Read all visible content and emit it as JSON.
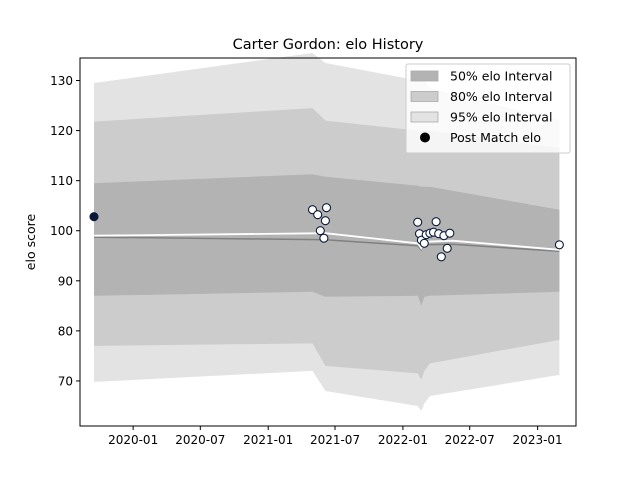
{
  "chart_data": {
    "type": "line",
    "title": "Carter Gordon: elo History",
    "xlabel": "",
    "ylabel": "elo score",
    "x_ticks": [
      "2020-01",
      "2020-07",
      "2021-01",
      "2021-07",
      "2022-01",
      "2022-07",
      "2023-01"
    ],
    "y_ticks": [
      70,
      80,
      90,
      100,
      110,
      120,
      130
    ],
    "xlim": [
      "2019-08-10",
      "2023-04-15"
    ],
    "ylim": [
      61,
      134.5
    ],
    "colors": {
      "band50": "#b3b3b3",
      "band80": "#cccccc",
      "band95": "#e3e3e3",
      "mean_line": "#ffffff",
      "median_line": "#808080",
      "marker_edge": "#0b1a3a",
      "marker_face": "#ffffff",
      "marker_first": "#0b1a3a"
    },
    "legend": {
      "position": "top-right",
      "entries": [
        "50% elo Interval",
        "80% elo Interval",
        "95% elo Interval",
        "Post Match elo"
      ]
    },
    "bands": {
      "x": [
        "2019-09-17",
        "2021-05-01",
        "2021-06-05",
        "2022-02-10",
        "2022-02-20",
        "2022-02-28",
        "2022-03-15",
        "2023-03-01"
      ],
      "p95_upper": [
        129.5,
        135.5,
        133.5,
        130.0,
        130.0,
        130.0,
        128.5,
        122.0
      ],
      "p95_lower": [
        69.8,
        72.0,
        68.0,
        65.0,
        64.0,
        65.5,
        67.0,
        71.2
      ],
      "p80_upper": [
        121.8,
        124.5,
        122.0,
        120.0,
        119.8,
        120.0,
        120.0,
        116.5
      ],
      "p80_lower": [
        77.0,
        77.5,
        73.0,
        71.5,
        70.2,
        72.0,
        73.5,
        78.2
      ],
      "p50_upper": [
        109.5,
        111.3,
        110.8,
        109.0,
        108.8,
        108.8,
        108.8,
        104.2
      ],
      "p50_lower": [
        87.0,
        87.8,
        86.8,
        87.0,
        85.0,
        86.8,
        87.0,
        87.8
      ]
    },
    "mean_line": {
      "x": [
        "2019-09-17",
        "2021-06-05",
        "2022-02-10",
        "2022-02-20",
        "2022-03-01",
        "2022-05-15",
        "2023-03-01"
      ],
      "y": [
        99.0,
        99.5,
        97.5,
        96.5,
        97.8,
        98.0,
        96.2
      ]
    },
    "median_line": {
      "x": [
        "2019-09-17",
        "2021-06-05",
        "2022-02-10",
        "2022-02-20",
        "2022-03-01",
        "2022-05-15",
        "2023-03-01"
      ],
      "y": [
        98.7,
        98.2,
        97.0,
        96.2,
        97.2,
        97.3,
        95.9
      ]
    },
    "points": {
      "x": [
        "2019-09-17",
        "2021-05-01",
        "2021-05-15",
        "2021-05-22",
        "2021-06-01",
        "2021-06-05",
        "2021-06-08",
        "2022-02-10",
        "2022-02-15",
        "2022-02-20",
        "2022-02-28",
        "2022-03-05",
        "2022-03-15",
        "2022-03-25",
        "2022-04-01",
        "2022-04-08",
        "2022-04-15",
        "2022-04-22",
        "2022-05-01",
        "2022-05-08",
        "2023-03-01"
      ],
      "y": [
        102.8,
        104.2,
        103.2,
        100.0,
        98.5,
        102.0,
        104.6,
        101.7,
        99.4,
        98.1,
        97.5,
        99.2,
        99.5,
        99.7,
        101.8,
        99.4,
        94.8,
        99.0,
        96.5,
        99.5,
        97.2
      ]
    }
  }
}
